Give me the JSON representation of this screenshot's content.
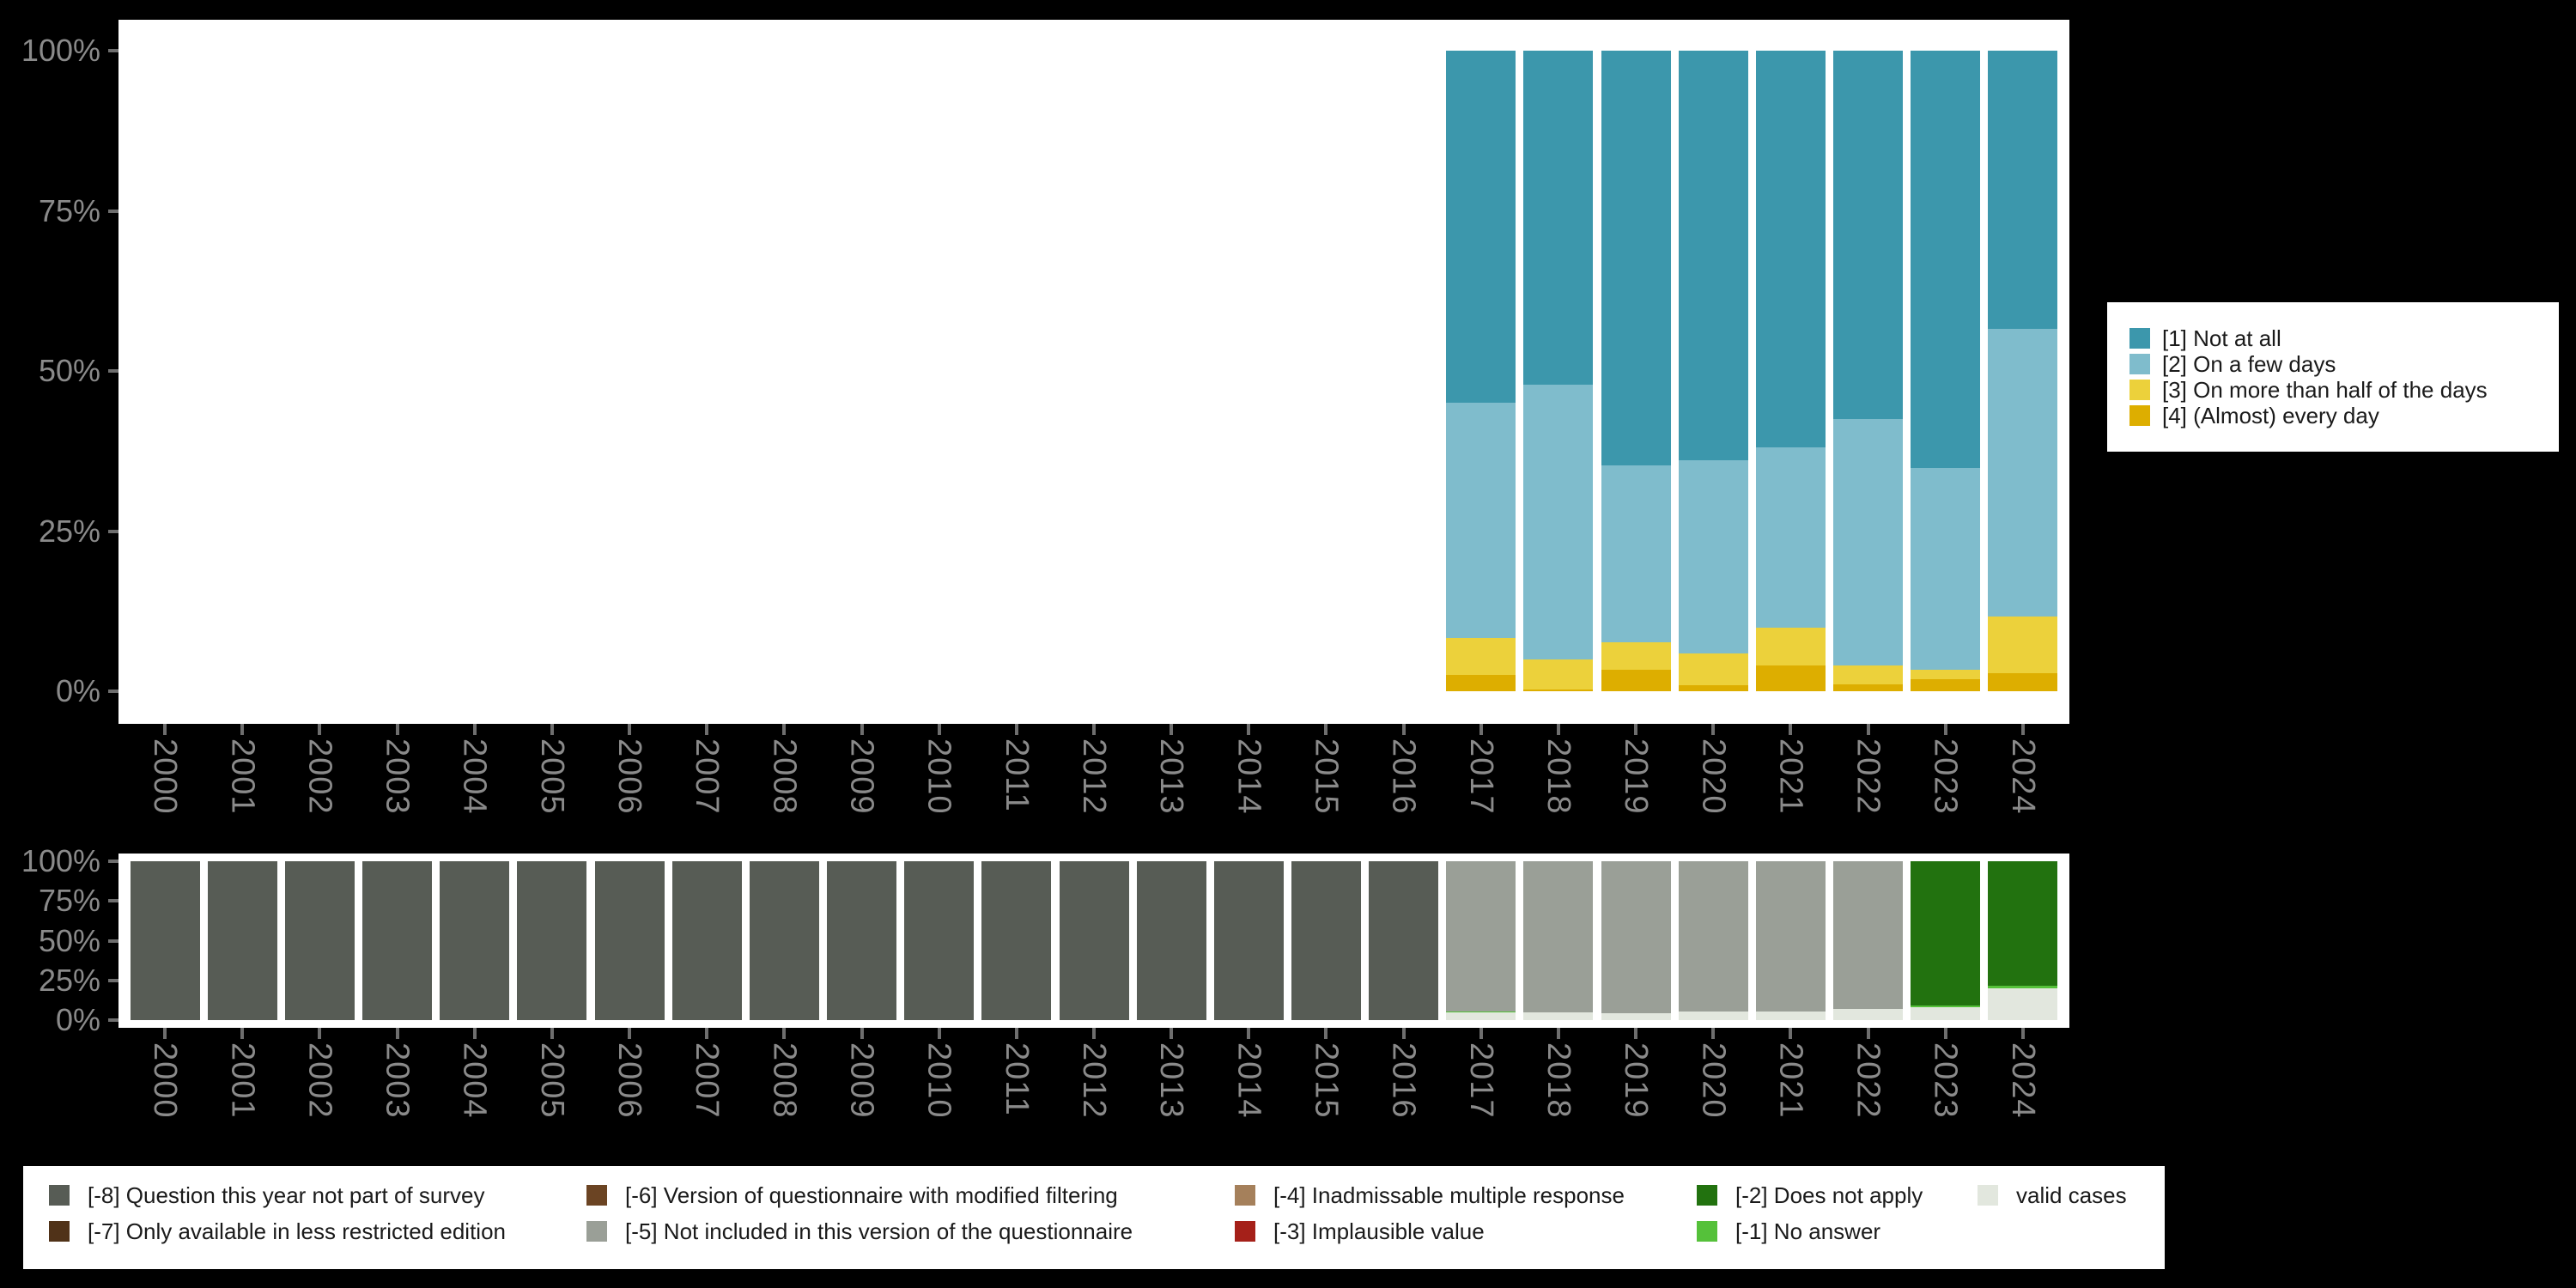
{
  "background_color": "#000000",
  "text_colors": {
    "axis": "#8a8a8a",
    "legend": "#1a1a1a"
  },
  "years": [
    "2000",
    "2001",
    "2002",
    "2003",
    "2004",
    "2005",
    "2006",
    "2007",
    "2008",
    "2009",
    "2010",
    "2011",
    "2012",
    "2013",
    "2014",
    "2015",
    "2016",
    "2017",
    "2018",
    "2019",
    "2020",
    "2021",
    "2022",
    "2023",
    "2024"
  ],
  "y_axis": {
    "tick_labels": [
      "100%",
      "75%",
      "50%",
      "25%",
      "0%"
    ],
    "tick_values": [
      100,
      75,
      50,
      25,
      0
    ]
  },
  "chart_data": [
    {
      "type": "bar",
      "stacked": true,
      "title": "Answer distribution by year (percent)",
      "categories": [
        "2000",
        "2001",
        "2002",
        "2003",
        "2004",
        "2005",
        "2006",
        "2007",
        "2008",
        "2009",
        "2010",
        "2011",
        "2012",
        "2013",
        "2014",
        "2015",
        "2016",
        "2017",
        "2018",
        "2019",
        "2020",
        "2021",
        "2022",
        "2023",
        "2024"
      ],
      "ylim": [
        0,
        100
      ],
      "grid": false,
      "legend_position": "right",
      "series": [
        {
          "name": "[1] Not at all",
          "color": "#3C97AC",
          "values": [
            0,
            0,
            0,
            0,
            0,
            0,
            0,
            0,
            0,
            0,
            0,
            0,
            0,
            0,
            0,
            0,
            0,
            54.9,
            52.1,
            64.7,
            63.9,
            61.9,
            57.5,
            65.2,
            43.4
          ]
        },
        {
          "name": "[2] On a few days",
          "color": "#7FBCCC",
          "values": [
            0,
            0,
            0,
            0,
            0,
            0,
            0,
            0,
            0,
            0,
            0,
            0,
            0,
            0,
            0,
            0,
            0,
            36.8,
            43.0,
            27.6,
            30.2,
            28.2,
            38.5,
            31.5,
            44.9
          ]
        },
        {
          "name": "[3] On more than half of the days",
          "color": "#ECD13B",
          "values": [
            0,
            0,
            0,
            0,
            0,
            0,
            0,
            0,
            0,
            0,
            0,
            0,
            0,
            0,
            0,
            0,
            0,
            5.8,
            4.6,
            4.3,
            4.9,
            5.9,
            2.9,
            1.4,
            8.9
          ]
        },
        {
          "name": "[4] (Almost) every day",
          "color": "#DDAE00",
          "values": [
            0,
            0,
            0,
            0,
            0,
            0,
            0,
            0,
            0,
            0,
            0,
            0,
            0,
            0,
            0,
            0,
            0,
            2.5,
            0.3,
            3.4,
            1.0,
            4.0,
            1.1,
            1.9,
            2.8
          ]
        }
      ]
    },
    {
      "type": "bar",
      "stacked": true,
      "title": "Missing values and valid cases by year (percent)",
      "categories": [
        "2000",
        "2001",
        "2002",
        "2003",
        "2004",
        "2005",
        "2006",
        "2007",
        "2008",
        "2009",
        "2010",
        "2011",
        "2012",
        "2013",
        "2014",
        "2015",
        "2016",
        "2017",
        "2018",
        "2019",
        "2020",
        "2021",
        "2022",
        "2023",
        "2024"
      ],
      "ylim": [
        0,
        100
      ],
      "grid": false,
      "legend_position": "bottom",
      "series": [
        {
          "name": "[-8] Question this year not part of survey",
          "color": "#575C55",
          "values": [
            100,
            100,
            100,
            100,
            100,
            100,
            100,
            100,
            100,
            100,
            100,
            100,
            100,
            100,
            100,
            100,
            100,
            0,
            0,
            0,
            0,
            0,
            0,
            0,
            0
          ]
        },
        {
          "name": "[-7] Only available in less restricted edition",
          "color": "#503218",
          "values": [
            0,
            0,
            0,
            0,
            0,
            0,
            0,
            0,
            0,
            0,
            0,
            0,
            0,
            0,
            0,
            0,
            0,
            0,
            0,
            0,
            0,
            0,
            0,
            0,
            0
          ]
        },
        {
          "name": "[-6] Version of questionnaire with modified filtering",
          "color": "#6B4423",
          "values": [
            0,
            0,
            0,
            0,
            0,
            0,
            0,
            0,
            0,
            0,
            0,
            0,
            0,
            0,
            0,
            0,
            0,
            0,
            0,
            0,
            0,
            0,
            0,
            0,
            0
          ]
        },
        {
          "name": "[-5] Not included in this version of the questionnaire",
          "color": "#9A9F97",
          "values": [
            0,
            0,
            0,
            0,
            0,
            0,
            0,
            0,
            0,
            0,
            0,
            0,
            0,
            0,
            0,
            0,
            0,
            94.3,
            95.1,
            95.7,
            94.3,
            94.3,
            92.8,
            0,
            0
          ]
        },
        {
          "name": "[-4] Inadmissable multiple response",
          "color": "#A5805B",
          "values": [
            0,
            0,
            0,
            0,
            0,
            0,
            0,
            0,
            0,
            0,
            0,
            0,
            0,
            0,
            0,
            0,
            0,
            0,
            0,
            0,
            0,
            0,
            0,
            0,
            0
          ]
        },
        {
          "name": "[-3] Implausible value",
          "color": "#A52019",
          "values": [
            0,
            0,
            0,
            0,
            0,
            0,
            0,
            0,
            0,
            0,
            0,
            0,
            0,
            0,
            0,
            0,
            0,
            0,
            0,
            0,
            0,
            0,
            0,
            0,
            0
          ]
        },
        {
          "name": "[-2] Does not apply",
          "color": "#22720F",
          "values": [
            0,
            0,
            0,
            0,
            0,
            0,
            0,
            0,
            0,
            0,
            0,
            0,
            0,
            0,
            0,
            0,
            0,
            0,
            0,
            0,
            0,
            0,
            0,
            90.9,
            78.4
          ]
        },
        {
          "name": "[-1] No answer",
          "color": "#55C13A",
          "values": [
            0,
            0,
            0,
            0,
            0,
            0,
            0,
            0,
            0,
            0,
            0,
            0,
            0,
            0,
            0,
            0,
            0,
            0.9,
            0,
            0,
            0,
            0,
            0,
            0.7,
            1.3
          ]
        },
        {
          "name": "valid cases",
          "color": "#E2E7DE",
          "values": [
            0,
            0,
            0,
            0,
            0,
            0,
            0,
            0,
            0,
            0,
            0,
            0,
            0,
            0,
            0,
            0,
            0,
            4.8,
            4.9,
            4.3,
            5.7,
            5.7,
            7.2,
            8.4,
            20.3
          ]
        }
      ]
    }
  ],
  "legend_top": {
    "items": [
      {
        "label": "[1] Not at all",
        "color": "#3C97AC"
      },
      {
        "label": "[2] On a few days",
        "color": "#7FBCCC"
      },
      {
        "label": "[3] On more than half of the days",
        "color": "#ECD13B"
      },
      {
        "label": "[4] (Almost) every day",
        "color": "#DDAE00"
      }
    ]
  },
  "legend_bottom": {
    "columns": [
      [
        {
          "label": "[-8] Question this year not part of survey",
          "color": "#575C55"
        },
        {
          "label": "[-7] Only available in less restricted edition",
          "color": "#503218"
        }
      ],
      [
        {
          "label": "[-6] Version of questionnaire with modified filtering",
          "color": "#6B4423"
        },
        {
          "label": "[-5] Not included in this version of the questionnaire",
          "color": "#9A9F97"
        }
      ],
      [
        {
          "label": "[-4] Inadmissable multiple response",
          "color": "#A5805B"
        },
        {
          "label": "[-3] Implausible value",
          "color": "#A52019"
        }
      ],
      [
        {
          "label": "[-2] Does not apply",
          "color": "#22720F"
        },
        {
          "label": "[-1] No answer",
          "color": "#55C13A"
        }
      ],
      [
        {
          "label": "valid cases",
          "color": "#E2E7DE"
        }
      ]
    ]
  }
}
